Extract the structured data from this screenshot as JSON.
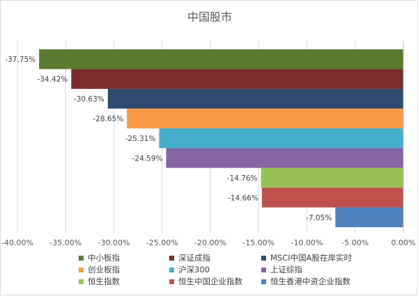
{
  "chart_data": {
    "type": "bar",
    "orientation": "horizontal",
    "title": "中国股市",
    "xlim": [
      -40,
      0
    ],
    "x_ticks": [
      "-40.00%",
      "-35.00%",
      "-30.00%",
      "-25.00%",
      "-20.00%",
      "-15.00%",
      "-10.00%",
      "-5.00%",
      "0.00%"
    ],
    "grid": "vertical",
    "legend_position": "bottom",
    "series": [
      {
        "name": "中小板指",
        "value": -37.75,
        "label": "-37.75%",
        "color": "#5a7a2f"
      },
      {
        "name": "深证成指",
        "value": -34.42,
        "label": "-34.42%",
        "color": "#7b2c2c"
      },
      {
        "name": "MSCI中国A股在岸实时",
        "value": -30.63,
        "label": "-30.63%",
        "color": "#2e4a6e"
      },
      {
        "name": "创业板指",
        "value": -28.65,
        "label": "-28.65%",
        "color": "#f79a46"
      },
      {
        "name": "沪深300",
        "value": -25.31,
        "label": "-25.31%",
        "color": "#46aecb"
      },
      {
        "name": "上证综指",
        "value": -24.59,
        "label": "-24.59%",
        "color": "#8466a4"
      },
      {
        "name": "恒生指数",
        "value": -14.76,
        "label": "-14.76%",
        "color": "#9ac059"
      },
      {
        "name": "恒生中国企业指数",
        "value": -14.66,
        "label": "-14.66%",
        "color": "#c0504d"
      },
      {
        "name": "恒生香港中资企业指数",
        "value": -7.05,
        "label": "-7.05%",
        "color": "#4f81bd"
      }
    ]
  }
}
